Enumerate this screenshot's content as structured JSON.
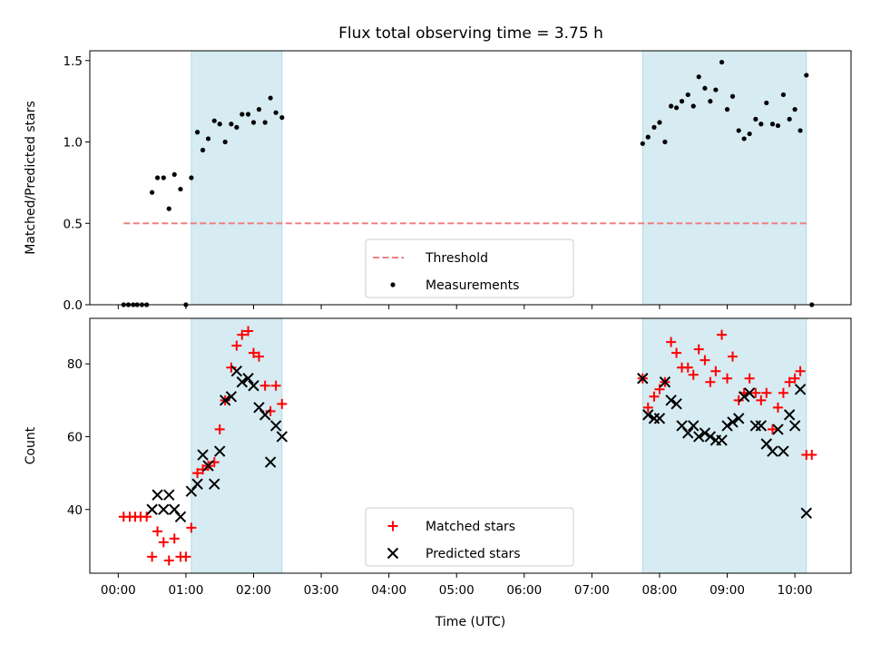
{
  "title": "Flux total observing time = 3.75 h",
  "colors": {
    "threshold": "#f08080",
    "measurements": "#000000",
    "matched": "#ff0000",
    "predicted": "#000000",
    "shade": "#add8e6"
  },
  "chart_data": [
    {
      "type": "scatter",
      "ylabel": "Matched/Predicted stars",
      "xlim": [
        -0.42,
        10.83
      ],
      "ylim": [
        0,
        1.56
      ],
      "yticks": [
        0.0,
        0.5,
        1.0,
        1.5
      ],
      "ytick_labels": [
        "0.0",
        "0.5",
        "1.0",
        "1.5"
      ],
      "x_tick_labels_visible": false,
      "shaded_spans": [
        [
          1.08,
          2.42
        ],
        [
          7.75,
          10.17
        ]
      ],
      "legend": {
        "position": "lower center",
        "entries": [
          "Threshold",
          "Measurements"
        ]
      },
      "series": [
        {
          "name": "Threshold",
          "kind": "dashed-line",
          "x": [
            0.08,
            10.17
          ],
          "y": [
            0.5,
            0.5
          ]
        },
        {
          "name": "Measurements",
          "kind": "dots",
          "x": [
            0.08,
            0.15,
            0.22,
            0.28,
            0.35,
            0.42,
            0.5,
            0.58,
            0.67,
            0.75,
            0.83,
            0.92,
            1.0,
            1.08,
            1.17,
            1.25,
            1.33,
            1.42,
            1.5,
            1.58,
            1.67,
            1.75,
            1.83,
            1.92,
            2.0,
            2.08,
            2.17,
            2.25,
            2.33,
            2.42,
            7.75,
            7.83,
            7.92,
            8.0,
            8.08,
            8.17,
            8.25,
            8.33,
            8.42,
            8.5,
            8.58,
            8.67,
            8.75,
            8.83,
            8.92,
            9.0,
            9.08,
            9.17,
            9.25,
            9.33,
            9.42,
            9.5,
            9.58,
            9.67,
            9.75,
            9.83,
            9.92,
            10.0,
            10.08,
            10.17,
            10.25
          ],
          "y": [
            0.0,
            0.0,
            0.0,
            0.0,
            0.0,
            0.0,
            0.69,
            0.78,
            0.78,
            0.59,
            0.8,
            0.71,
            0.0,
            0.78,
            1.06,
            0.95,
            1.02,
            1.13,
            1.11,
            1.0,
            1.11,
            1.09,
            1.17,
            1.17,
            1.12,
            1.2,
            1.12,
            1.27,
            1.18,
            1.15,
            0.99,
            1.03,
            1.09,
            1.12,
            1.0,
            1.22,
            1.21,
            1.25,
            1.29,
            1.22,
            1.4,
            1.33,
            1.25,
            1.32,
            1.49,
            1.2,
            1.28,
            1.07,
            1.02,
            1.05,
            1.14,
            1.11,
            1.24,
            1.11,
            1.1,
            1.29,
            1.14,
            1.2,
            1.07,
            1.41,
            0.0
          ]
        }
      ]
    },
    {
      "type": "scatter",
      "xlabel": "Time (UTC)",
      "ylabel": "Count",
      "xlim": [
        -0.42,
        10.83
      ],
      "ylim": [
        22.5,
        92.5
      ],
      "xticks": [
        0,
        1,
        2,
        3,
        4,
        5,
        6,
        7,
        8,
        9,
        10
      ],
      "xtick_labels": [
        "00:00",
        "01:00",
        "02:00",
        "03:00",
        "04:00",
        "05:00",
        "06:00",
        "07:00",
        "08:00",
        "09:00",
        "10:00"
      ],
      "yticks": [
        40,
        60,
        80
      ],
      "ytick_labels": [
        "40",
        "60",
        "80"
      ],
      "shaded_spans": [
        [
          1.08,
          2.42
        ],
        [
          7.75,
          10.17
        ]
      ],
      "legend": {
        "position": "lower center",
        "entries": [
          "Matched stars",
          "Predicted stars"
        ]
      },
      "series": [
        {
          "name": "Matched stars",
          "marker": "+",
          "x": [
            0.08,
            0.17,
            0.25,
            0.33,
            0.42,
            0.5,
            0.58,
            0.67,
            0.75,
            0.83,
            0.92,
            1.0,
            1.08,
            1.17,
            1.25,
            1.33,
            1.42,
            1.5,
            1.58,
            1.67,
            1.75,
            1.83,
            1.92,
            2.0,
            2.08,
            2.17,
            2.25,
            2.33,
            2.42,
            7.75,
            7.83,
            7.92,
            8.0,
            8.08,
            8.17,
            8.25,
            8.33,
            8.42,
            8.5,
            8.58,
            8.67,
            8.75,
            8.83,
            8.92,
            9.0,
            9.08,
            9.17,
            9.25,
            9.33,
            9.42,
            9.5,
            9.58,
            9.67,
            9.75,
            9.83,
            9.92,
            10.0,
            10.08,
            10.17,
            10.25
          ],
          "y": [
            38,
            38,
            38,
            38,
            38,
            27,
            34,
            31,
            26,
            32,
            27,
            27,
            35,
            50,
            51,
            52,
            53,
            62,
            70,
            79,
            85,
            88,
            89,
            83,
            82,
            74,
            67,
            74,
            69,
            76,
            68,
            71,
            73,
            75,
            86,
            83,
            79,
            79,
            77,
            84,
            81,
            75,
            78,
            88,
            76,
            82,
            70,
            72,
            76,
            72,
            70,
            72,
            62,
            68,
            72,
            75,
            76,
            78,
            55,
            55
          ]
        },
        {
          "name": "Predicted stars",
          "marker": "x",
          "x": [
            0.5,
            0.58,
            0.67,
            0.75,
            0.83,
            0.92,
            1.08,
            1.17,
            1.25,
            1.33,
            1.42,
            1.5,
            1.58,
            1.67,
            1.75,
            1.83,
            1.92,
            2.0,
            2.08,
            2.17,
            2.25,
            2.33,
            2.42,
            7.75,
            7.83,
            7.92,
            8.0,
            8.08,
            8.17,
            8.25,
            8.33,
            8.42,
            8.5,
            8.58,
            8.67,
            8.75,
            8.83,
            8.92,
            9.0,
            9.08,
            9.17,
            9.25,
            9.33,
            9.42,
            9.5,
            9.58,
            9.67,
            9.75,
            9.83,
            9.92,
            10.0,
            10.08,
            10.17
          ],
          "y": [
            40,
            44,
            40,
            44,
            40,
            38,
            45,
            47,
            55,
            52,
            47,
            56,
            70,
            71,
            78,
            75,
            76,
            74,
            68,
            66,
            53,
            63,
            60,
            76,
            66,
            65,
            65,
            75,
            70,
            69,
            63,
            61,
            63,
            60,
            61,
            60,
            59,
            59,
            63,
            64,
            65,
            71,
            72,
            63,
            63,
            58,
            56,
            62,
            56,
            66,
            63,
            73,
            39
          ]
        }
      ]
    }
  ]
}
